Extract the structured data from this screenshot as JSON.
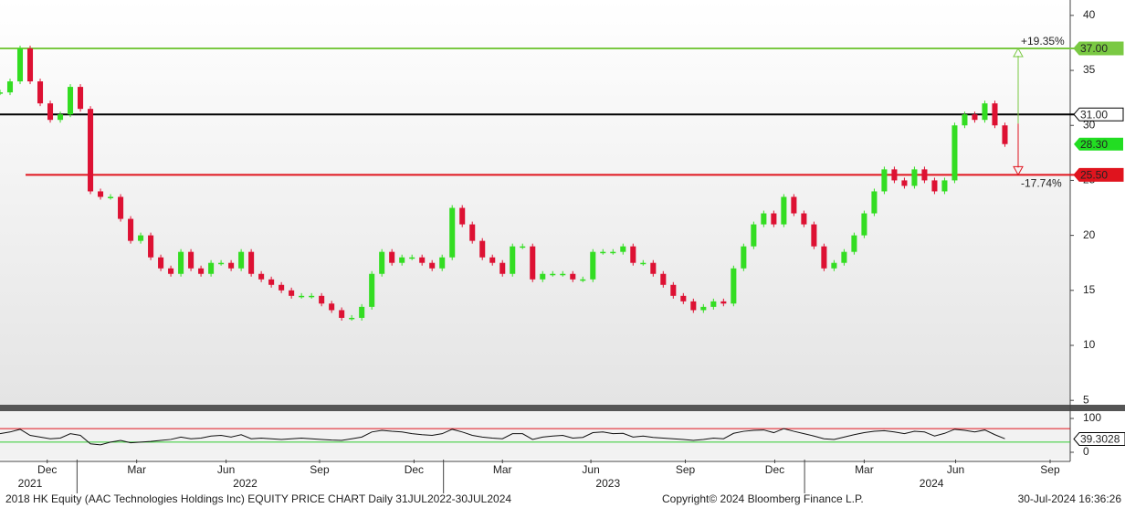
{
  "chart_data": {
    "type": "candle-close",
    "title": "2018 HK Equity (AAC Technologies Holdings Inc) EQUITY PRICE CHART  Daily 31JUL2022-30JUL2024",
    "copyright": "Copyright© 2024 Bloomberg Finance L.P.",
    "timestamp": "30-Jul-2024 16:36:26",
    "up_color": "#33dd22",
    "down_color": "#dd1133",
    "values": [
      33,
      34,
      37,
      34,
      32,
      30.5,
      31,
      33.5,
      31.5,
      24,
      23.5,
      23.5,
      21.5,
      19.5,
      20,
      18,
      17,
      16.5,
      18.5,
      17,
      16.5,
      17.5,
      17.5,
      17,
      18.5,
      16.5,
      16,
      15.5,
      15,
      14.5,
      14.5,
      14.5,
      13.8,
      13.2,
      12.5,
      12.5,
      13.5,
      16.5,
      18.5,
      17.5,
      18,
      18,
      17.5,
      17,
      18,
      22.5,
      21,
      19.5,
      18,
      17.5,
      16.5,
      19,
      19,
      16,
      16.5,
      16.5,
      16.5,
      16,
      16,
      18.5,
      18.5,
      18.5,
      19,
      17.5,
      17.5,
      16.5,
      15.5,
      14.5,
      14,
      13.2,
      13.5,
      14,
      13.8,
      17,
      19,
      21,
      22,
      21,
      23.5,
      22,
      21,
      19,
      17,
      17.5,
      18.5,
      20,
      22,
      24,
      26,
      25,
      24.5,
      26,
      25,
      24,
      25,
      30,
      31,
      30.5,
      32,
      30,
      28.3
    ],
    "xlim": [
      0,
      106.5
    ],
    "xticks": [
      {
        "value": 4.7,
        "label": "Dec"
      },
      {
        "value": 13.6,
        "label": "Mar"
      },
      {
        "value": 22.5,
        "label": "Jun"
      },
      {
        "value": 31.8,
        "label": "Sep"
      },
      {
        "value": 41.2,
        "label": "Dec"
      },
      {
        "value": 50,
        "label": "Mar"
      },
      {
        "value": 58.8,
        "label": "Jun"
      },
      {
        "value": 68.2,
        "label": "Sep"
      },
      {
        "value": 77.1,
        "label": "Dec"
      },
      {
        "value": 86,
        "label": "Mar"
      },
      {
        "value": 95.1,
        "label": "Jun"
      },
      {
        "value": 104.5,
        "label": "Sep"
      }
    ],
    "year_ticks": [
      {
        "value": 3,
        "label": "2021"
      },
      {
        "value": 24.4,
        "label": "2022"
      },
      {
        "value": 60.5,
        "label": "2023"
      },
      {
        "value": 92.7,
        "label": "2024"
      }
    ],
    "ylim": [
      4.6,
      41.4
    ],
    "yticks": [
      5,
      10,
      15,
      20,
      25,
      30,
      35,
      40
    ],
    "levels": [
      {
        "value": 37,
        "label": "37.00",
        "color": "#7ac943"
      },
      {
        "value": 31,
        "label": "31.00",
        "color": "#000000"
      },
      {
        "value": 25.5,
        "label": "25.50",
        "color": "#e0141e"
      }
    ],
    "last_price": {
      "value": 28.3,
      "label": "28.30"
    },
    "annotations": [
      "+19.35%",
      "-17.74%"
    ],
    "rsi": {
      "values": [
        55,
        60,
        68,
        50,
        45,
        40,
        42,
        55,
        50,
        25,
        22,
        30,
        35,
        28,
        30,
        32,
        35,
        38,
        45,
        40,
        42,
        48,
        50,
        45,
        52,
        40,
        42,
        40,
        38,
        40,
        42,
        40,
        38,
        36,
        35,
        40,
        45,
        60,
        65,
        62,
        60,
        55,
        52,
        50,
        55,
        68,
        60,
        50,
        45,
        42,
        40,
        55,
        55,
        38,
        45,
        48,
        50,
        42,
        44,
        58,
        60,
        55,
        56,
        45,
        48,
        44,
        42,
        40,
        38,
        35,
        38,
        42,
        40,
        56,
        62,
        65,
        66,
        58,
        70,
        62,
        55,
        48,
        40,
        38,
        45,
        52,
        58,
        62,
        64,
        60,
        55,
        62,
        60,
        48,
        56,
        68,
        65,
        60,
        66,
        52,
        40
      ],
      "last": 39.3028,
      "ylim": [
        -21.6,
        121.6
      ],
      "yticks": [
        0,
        100
      ],
      "bands": [
        70,
        30
      ]
    }
  }
}
